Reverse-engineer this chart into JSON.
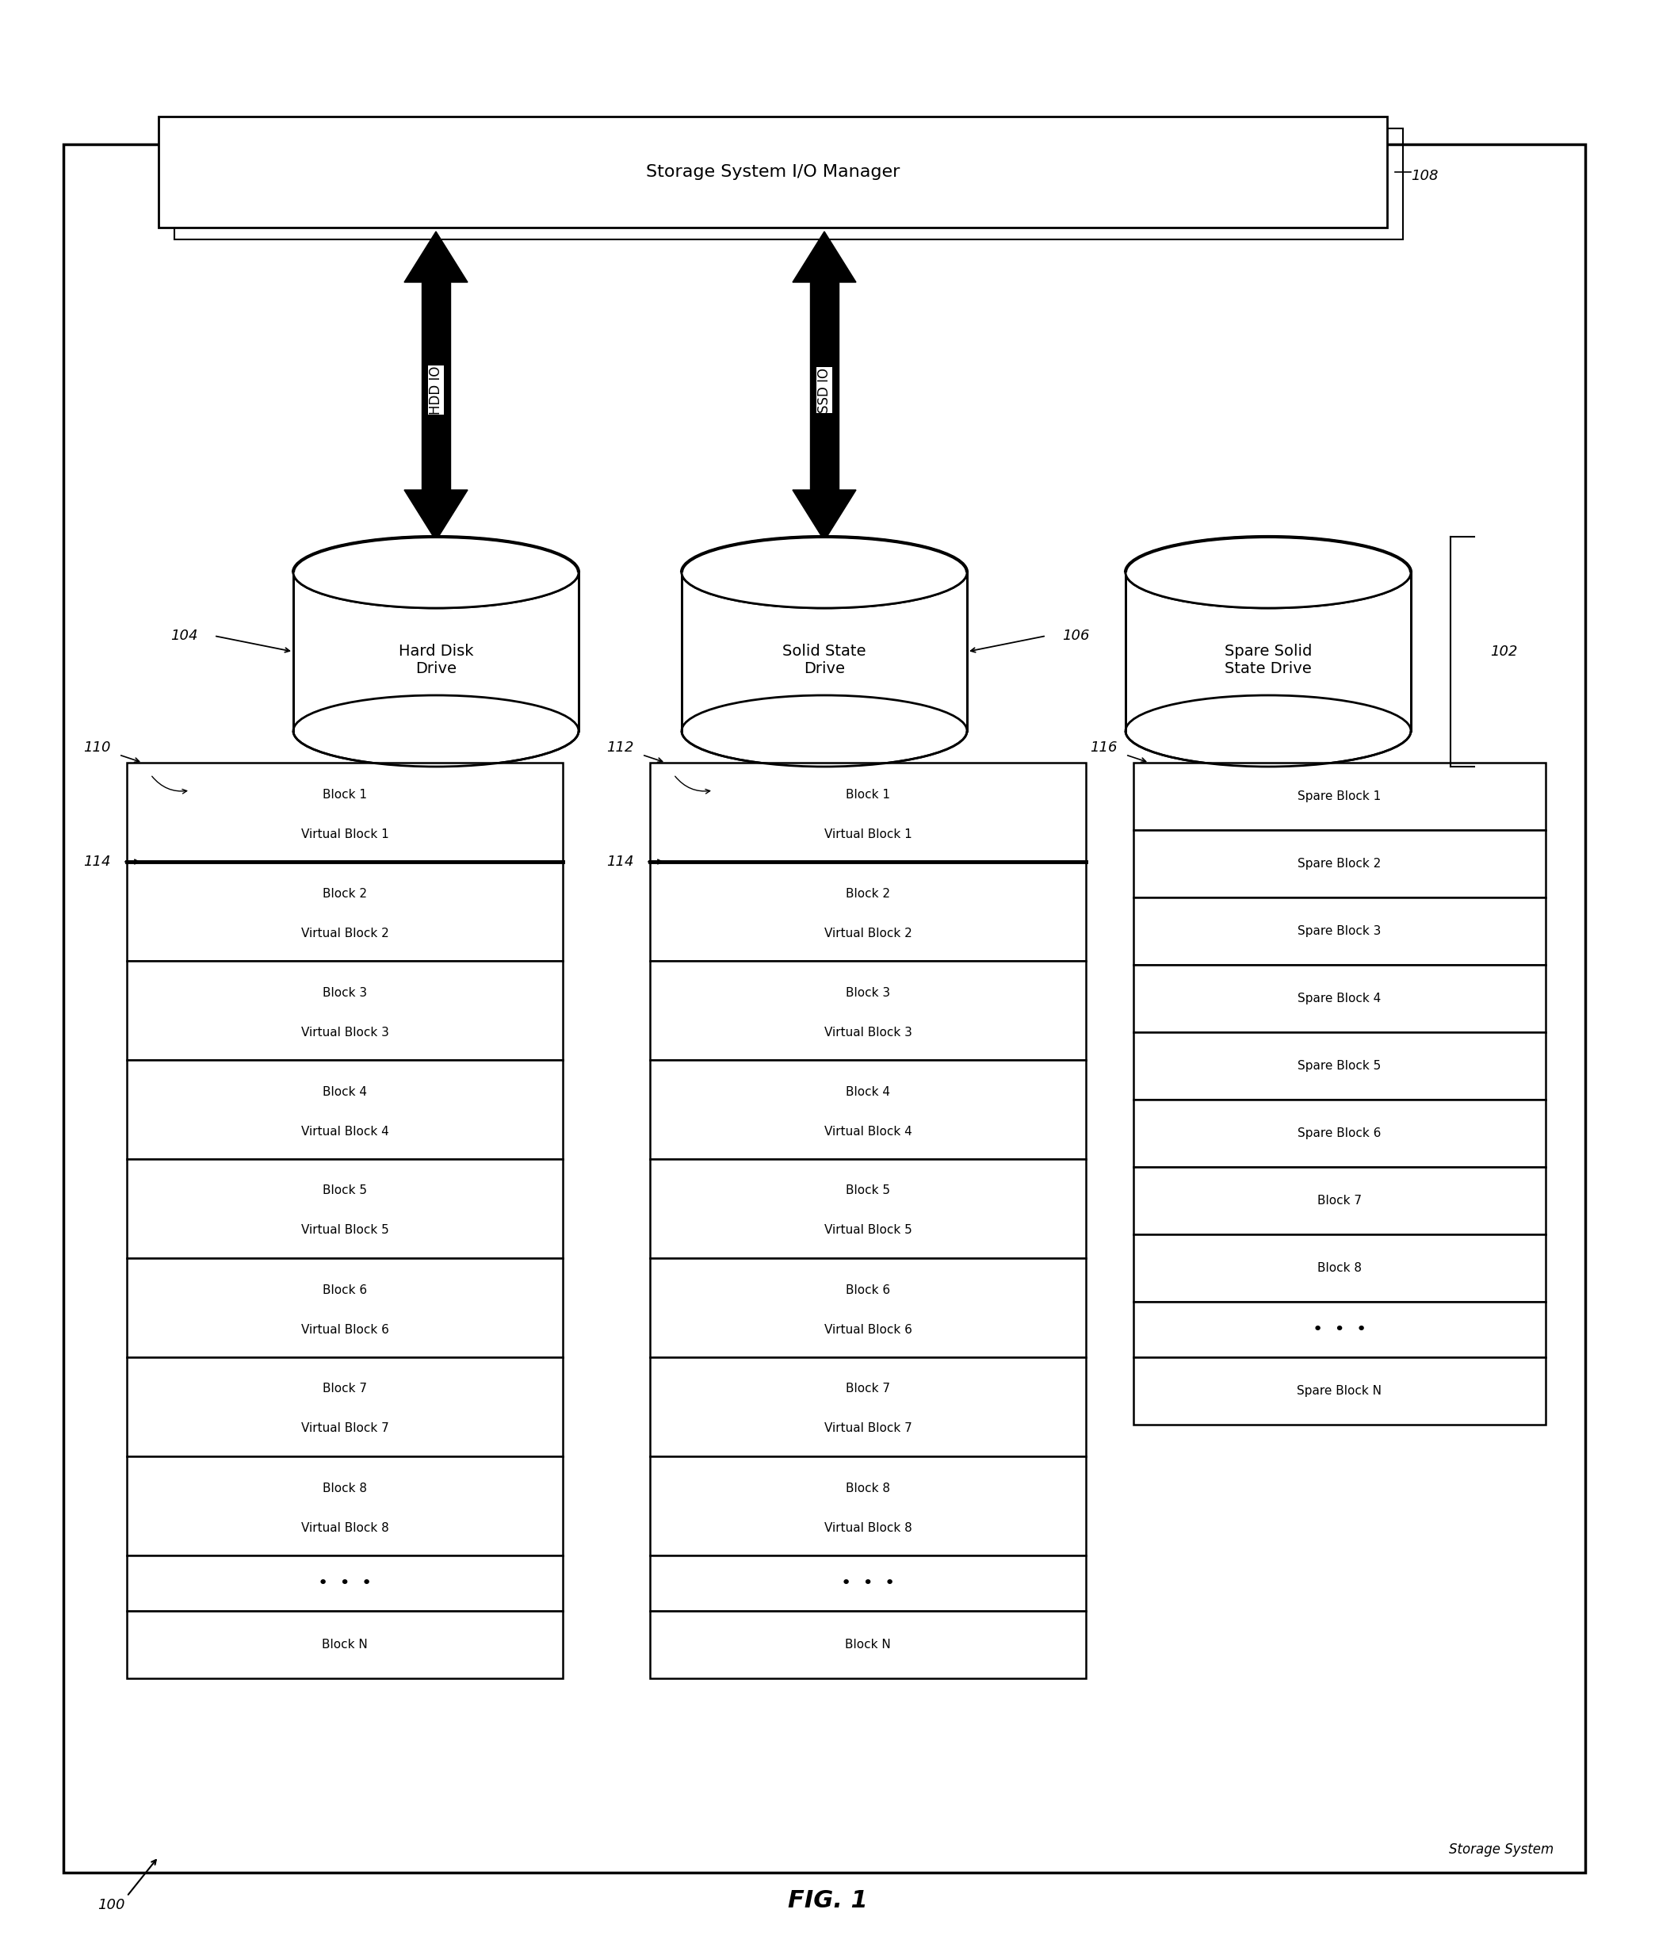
{
  "fig_width": 20.88,
  "fig_height": 24.42,
  "bg_color": "#ffffff",
  "title": "FIG. 1",
  "manager_box_text": "Storage System I/O Manager",
  "label_108": "108",
  "label_104": "104",
  "label_106": "106",
  "label_102": "102",
  "label_110": "110",
  "label_112": "112",
  "label_114a": "114",
  "label_114b": "114",
  "label_116": "116",
  "label_100": "100",
  "label_storage_system": "Storage System",
  "hdd_name": "Hard Disk\nDrive",
  "ssd_name": "Solid State\nDrive",
  "spare_name": "Spare Solid\nState Drive",
  "arrow_hdd": "HDD IO",
  "arrow_ssd": "SSD IO",
  "hdd_blocks": [
    {
      "line1": "Block 1",
      "line2": "Virtual Block 1",
      "thick_top": false
    },
    {
      "line1": "Block 2",
      "line2": "Virtual Block 2",
      "thick_top": true
    },
    {
      "line1": "Block 3",
      "line2": "Virtual Block 3",
      "thick_top": false
    },
    {
      "line1": "Block 4",
      "line2": "Virtual Block 4",
      "thick_top": false
    },
    {
      "line1": "Block 5",
      "line2": "Virtual Block 5",
      "thick_top": false
    },
    {
      "line1": "Block 6",
      "line2": "Virtual Block 6",
      "thick_top": false
    },
    {
      "line1": "Block 7",
      "line2": "Virtual Block 7",
      "thick_top": false
    },
    {
      "line1": "Block 8",
      "line2": "Virtual Block 8",
      "thick_top": false
    },
    {
      "line1": "•  •  •",
      "line2": null,
      "thick_top": false
    },
    {
      "line1": "Block N",
      "line2": null,
      "thick_top": false
    }
  ],
  "ssd_blocks": [
    {
      "line1": "Block 1",
      "line2": "Virtual Block 1",
      "thick_top": false
    },
    {
      "line1": "Block 2",
      "line2": "Virtual Block 2",
      "thick_top": true
    },
    {
      "line1": "Block 3",
      "line2": "Virtual Block 3",
      "thick_top": false
    },
    {
      "line1": "Block 4",
      "line2": "Virtual Block 4",
      "thick_top": false
    },
    {
      "line1": "Block 5",
      "line2": "Virtual Block 5",
      "thick_top": false
    },
    {
      "line1": "Block 6",
      "line2": "Virtual Block 6",
      "thick_top": false
    },
    {
      "line1": "Block 7",
      "line2": "Virtual Block 7",
      "thick_top": false
    },
    {
      "line1": "Block 8",
      "line2": "Virtual Block 8",
      "thick_top": false
    },
    {
      "line1": "•  •  •",
      "line2": null,
      "thick_top": false
    },
    {
      "line1": "Block N",
      "line2": null,
      "thick_top": false
    }
  ],
  "spare_blocks": [
    {
      "line1": "Spare Block 1",
      "line2": null
    },
    {
      "line1": "Spare Block 2",
      "line2": null
    },
    {
      "line1": "Spare Block 3",
      "line2": null
    },
    {
      "line1": "Spare Block 4",
      "line2": null
    },
    {
      "line1": "Spare Block 5",
      "line2": null
    },
    {
      "line1": "Spare Block 6",
      "line2": null
    },
    {
      "line1": "Block 7",
      "line2": null
    },
    {
      "line1": "Block 8",
      "line2": null
    },
    {
      "line1": "•  •  •",
      "line2": null
    },
    {
      "line1": "Spare Block N",
      "line2": null
    }
  ]
}
